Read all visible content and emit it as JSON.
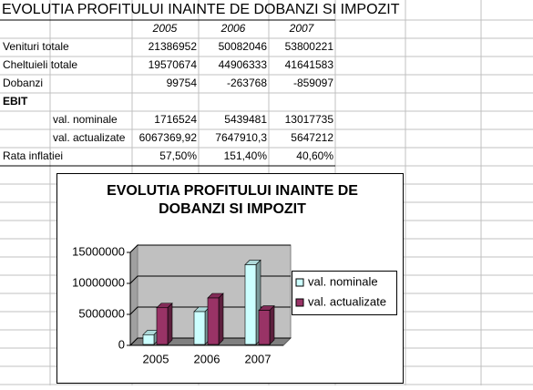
{
  "table": {
    "title": "EVOLUTIA PROFITULUI INAINTE DE DOBANZI SI IMPOZIT",
    "header": [
      "2005",
      "2006",
      "2007"
    ],
    "rows": [
      {
        "label": "Venituri totale",
        "values": [
          "21386952",
          "50082046",
          "53800221"
        ]
      },
      {
        "label": "Cheltuieli totale",
        "values": [
          "19570674",
          "44906333",
          "41641583"
        ]
      },
      {
        "label": "Dobanzi",
        "values": [
          "99754",
          "-263768",
          "-859097"
        ]
      },
      {
        "label": "EBIT",
        "values": []
      },
      {
        "label": "val. nominale",
        "values": [
          "1716524",
          "5439481",
          "13017735"
        ]
      },
      {
        "label": "val. actualizate",
        "values": [
          "6067369,92",
          "7647910,3",
          "5647212"
        ]
      },
      {
        "label": "Rata inflatiei",
        "values": [
          "57,50%",
          "151,40%",
          "40,60%"
        ]
      }
    ]
  },
  "chart_data": {
    "type": "bar",
    "title": "EVOLUTIA PROFITULUI INAINTE DE DOBANZI SI IMPOZIT",
    "categories": [
      "2005",
      "2006",
      "2007"
    ],
    "series": [
      {
        "name": "val. nominale",
        "color": "#ccffff",
        "values": [
          1716524,
          5439481,
          13017735
        ]
      },
      {
        "name": "val. actualizate",
        "color": "#993366",
        "values": [
          6067369.92,
          7647910.3,
          5647212
        ]
      }
    ],
    "ylim": [
      0,
      15000000
    ],
    "yticks": [
      0,
      5000000,
      10000000,
      15000000
    ],
    "grid": true,
    "legend": "right"
  }
}
